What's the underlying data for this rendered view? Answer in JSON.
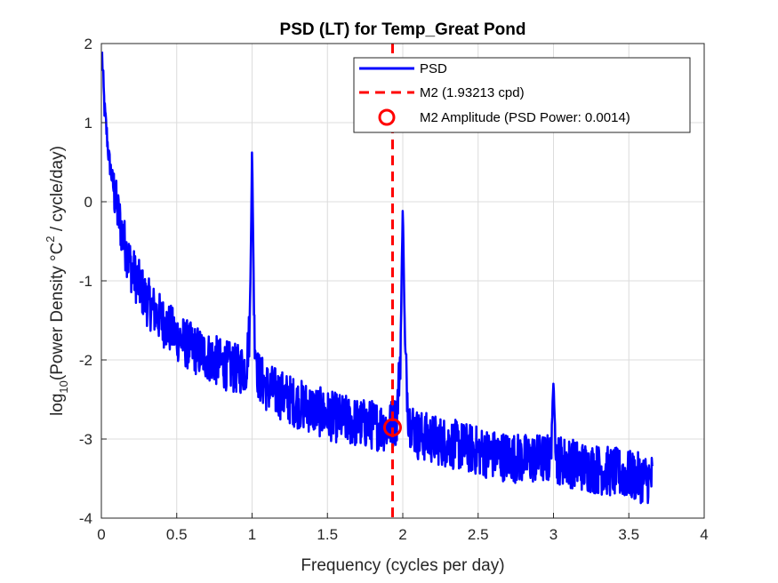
{
  "chart_data": {
    "type": "line",
    "title": "PSD (LT) for Temp_Great Pond",
    "xlabel": "Frequency (cycles per day)",
    "ylabel": {
      "prefix": "log",
      "sub": "10",
      "middle": "(Power Density °C",
      "sup": "2",
      "suffix": " / cycle/day)"
    },
    "xlim": [
      0,
      4
    ],
    "ylim": [
      -4,
      2
    ],
    "x_ticks": [
      "0",
      "0.5",
      "1",
      "1.5",
      "2",
      "2.5",
      "3",
      "3.5",
      "4"
    ],
    "y_ticks": [
      "2",
      "1",
      "0",
      "-1",
      "-2",
      "-3",
      "-4"
    ],
    "grid": true,
    "legend_position": "top-right",
    "colors": {
      "psd": "#0000ff",
      "m2_line": "#ff0000",
      "m2_marker": "#ff0000",
      "grid": "#dcdcdc",
      "axis": "#262626"
    },
    "series": [
      {
        "name": "PSD",
        "style": "solid",
        "anchor_points": [
          [
            0.005,
            1.85
          ],
          [
            0.02,
            1.2
          ],
          [
            0.05,
            0.55
          ],
          [
            0.1,
            -0.05
          ],
          [
            0.15,
            -0.5
          ],
          [
            0.2,
            -0.85
          ],
          [
            0.3,
            -1.25
          ],
          [
            0.4,
            -1.5
          ],
          [
            0.5,
            -1.7
          ],
          [
            0.6,
            -1.85
          ],
          [
            0.7,
            -1.95
          ],
          [
            0.8,
            -2.05
          ],
          [
            0.9,
            -2.12
          ],
          [
            0.96,
            -2.1
          ],
          [
            0.985,
            -1.6
          ],
          [
            1.0,
            0.65
          ],
          [
            1.015,
            -1.6
          ],
          [
            1.04,
            -2.2
          ],
          [
            1.1,
            -2.35
          ],
          [
            1.2,
            -2.45
          ],
          [
            1.3,
            -2.55
          ],
          [
            1.4,
            -2.62
          ],
          [
            1.5,
            -2.7
          ],
          [
            1.6,
            -2.75
          ],
          [
            1.7,
            -2.8
          ],
          [
            1.8,
            -2.82
          ],
          [
            1.9,
            -2.85
          ],
          [
            1.96,
            -2.75
          ],
          [
            1.985,
            -1.9
          ],
          [
            2.0,
            -0.02
          ],
          [
            2.015,
            -1.9
          ],
          [
            2.04,
            -2.75
          ],
          [
            2.1,
            -2.95
          ],
          [
            2.2,
            -3.0
          ],
          [
            2.4,
            -3.1
          ],
          [
            2.6,
            -3.2
          ],
          [
            2.8,
            -3.25
          ],
          [
            2.98,
            -3.25
          ],
          [
            3.0,
            -2.3
          ],
          [
            3.02,
            -3.25
          ],
          [
            3.2,
            -3.35
          ],
          [
            3.4,
            -3.42
          ],
          [
            3.6,
            -3.5
          ],
          [
            3.66,
            -3.5
          ]
        ]
      }
    ],
    "m2": {
      "legend_label": "M2 (1.93213 cpd)",
      "frequency": 1.93213,
      "style": "dashed"
    },
    "m2_amplitude": {
      "legend_label": "M2 Amplitude (PSD Power: 0.0014)",
      "x": 1.93213,
      "y": -2.854
    }
  }
}
